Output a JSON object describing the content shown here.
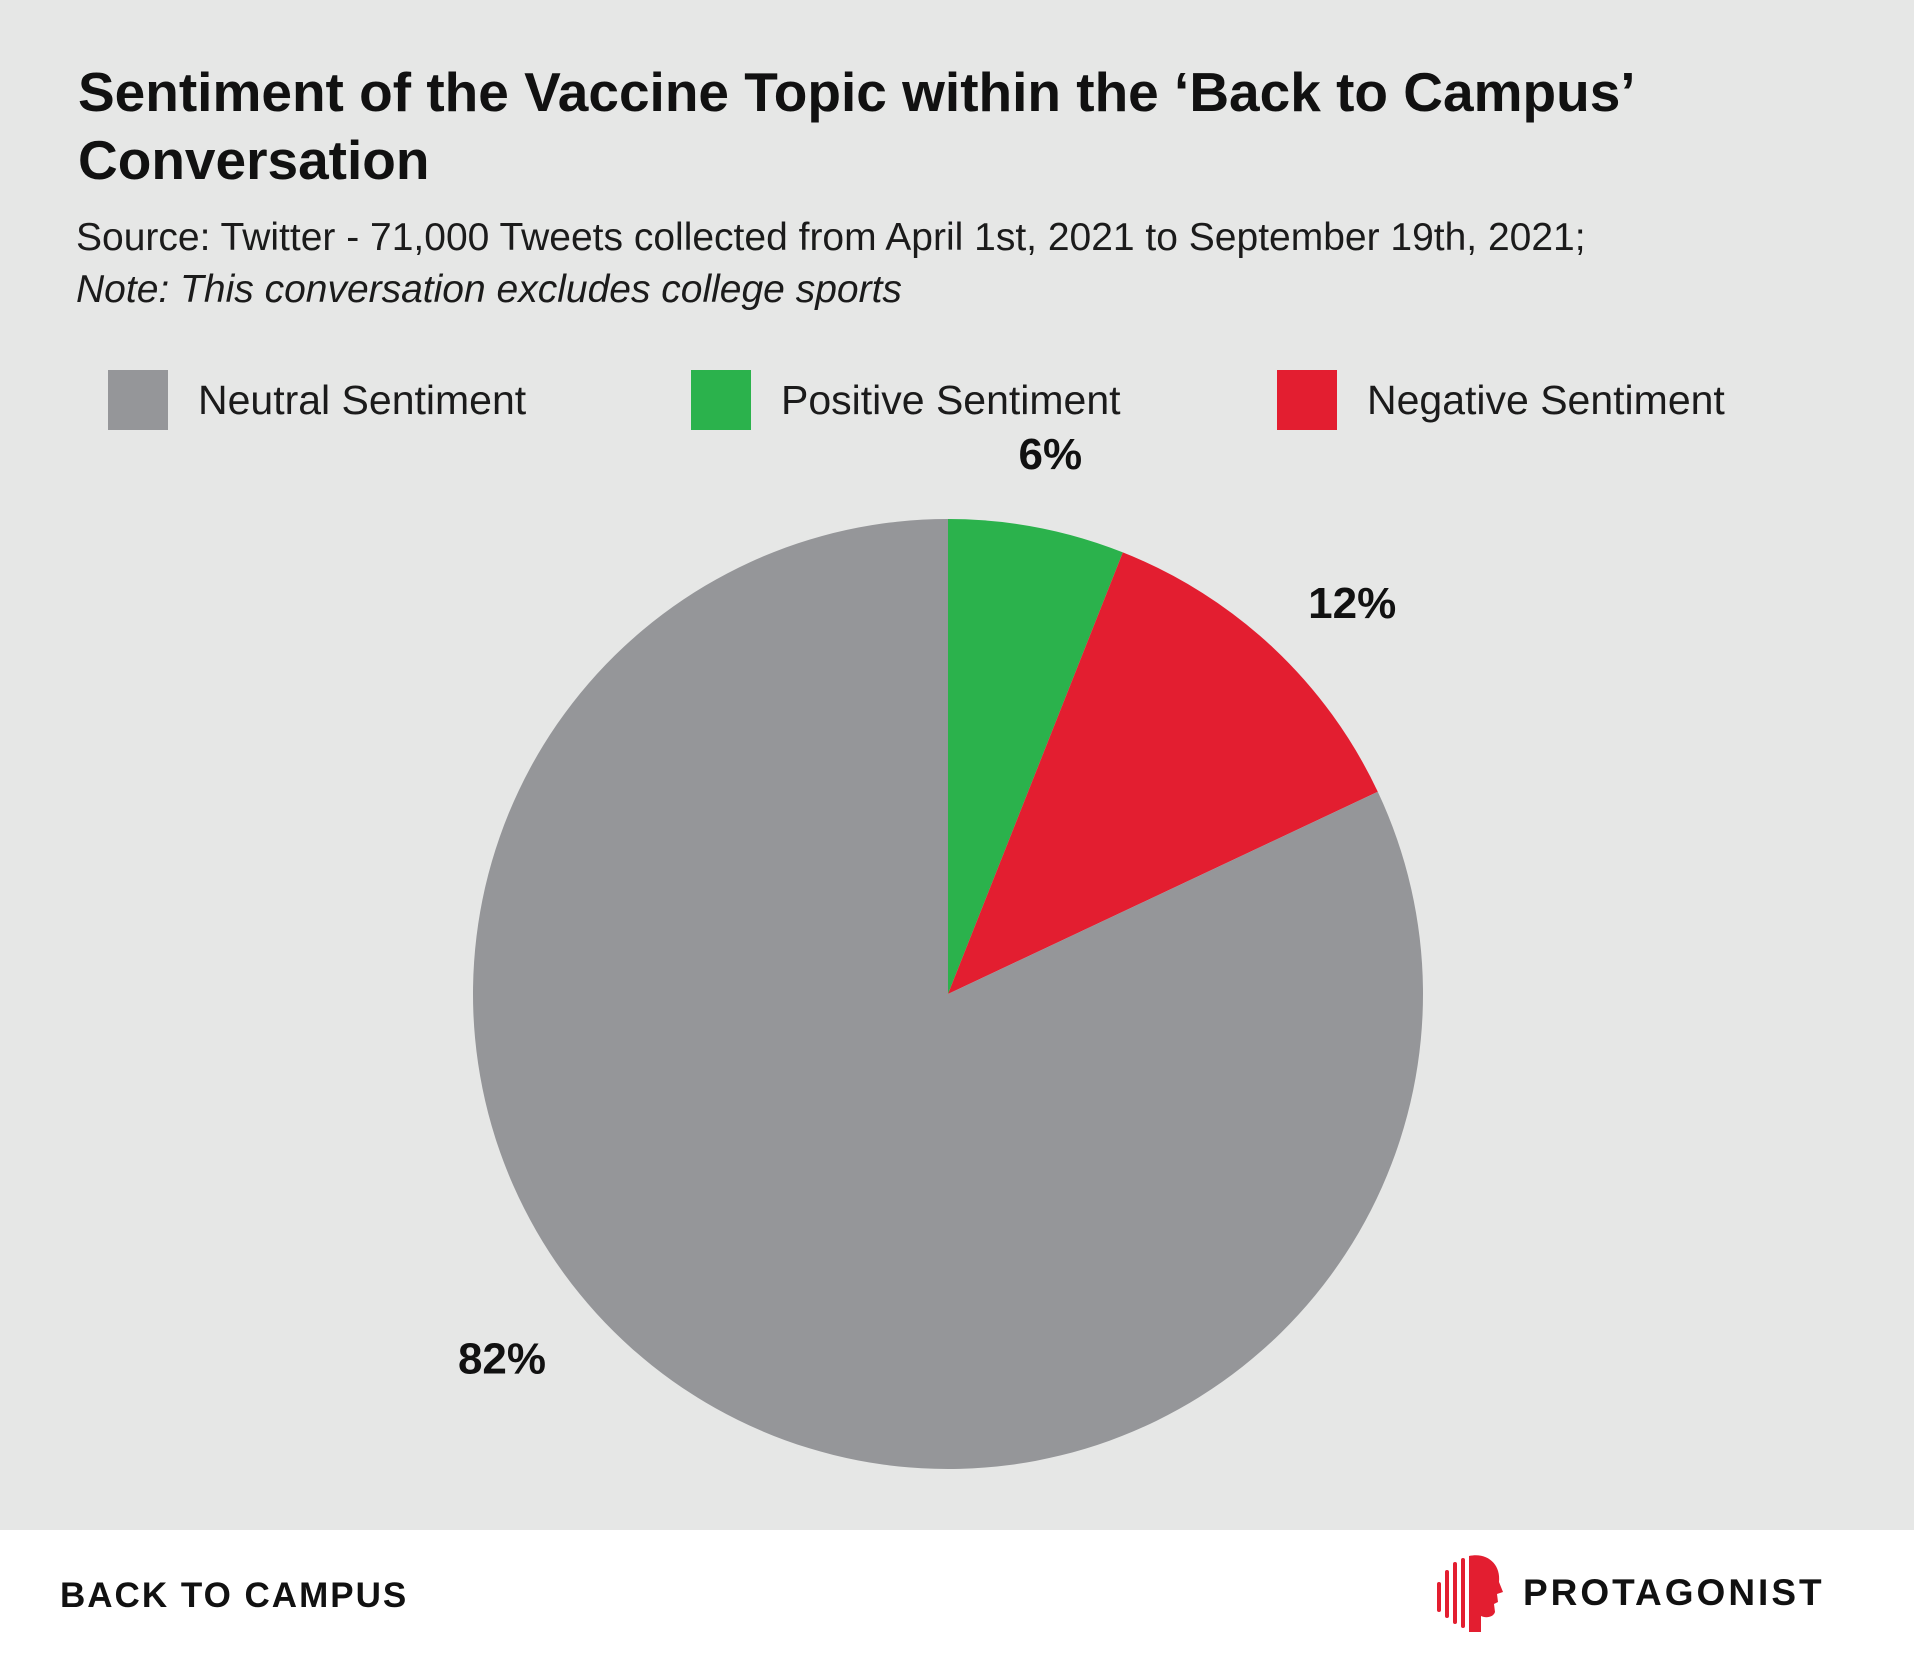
{
  "header": {
    "title": "Sentiment of the Vaccine Topic within the ‘Back to Campus’ Conversation",
    "source": "Source: Twitter - 71,000 Tweets collected from April 1st, 2021 to September 19th, 2021;",
    "note": "Note: This conversation excludes college sports"
  },
  "chart_data": {
    "type": "pie",
    "legend_position": "top",
    "slices": [
      {
        "name": "Positive Sentiment",
        "value": 6,
        "label": "6%",
        "color": "#2bb24c"
      },
      {
        "name": "Negative Sentiment",
        "value": 12,
        "label": "12%",
        "color": "#e31e30"
      },
      {
        "name": "Neutral Sentiment",
        "value": 82,
        "label": "82%",
        "color": "#959699"
      }
    ],
    "legend": [
      {
        "name": "Neutral Sentiment",
        "color": "#959699"
      },
      {
        "name": "Positive Sentiment",
        "color": "#2bb24c"
      },
      {
        "name": "Negative Sentiment",
        "color": "#e31e30"
      }
    ]
  },
  "footer": {
    "section": "BACK TO CAMPUS",
    "brand": "PROTAGONIST",
    "brand_color": "#e31e30",
    "brand_icon": "protagonist-logo-icon"
  }
}
